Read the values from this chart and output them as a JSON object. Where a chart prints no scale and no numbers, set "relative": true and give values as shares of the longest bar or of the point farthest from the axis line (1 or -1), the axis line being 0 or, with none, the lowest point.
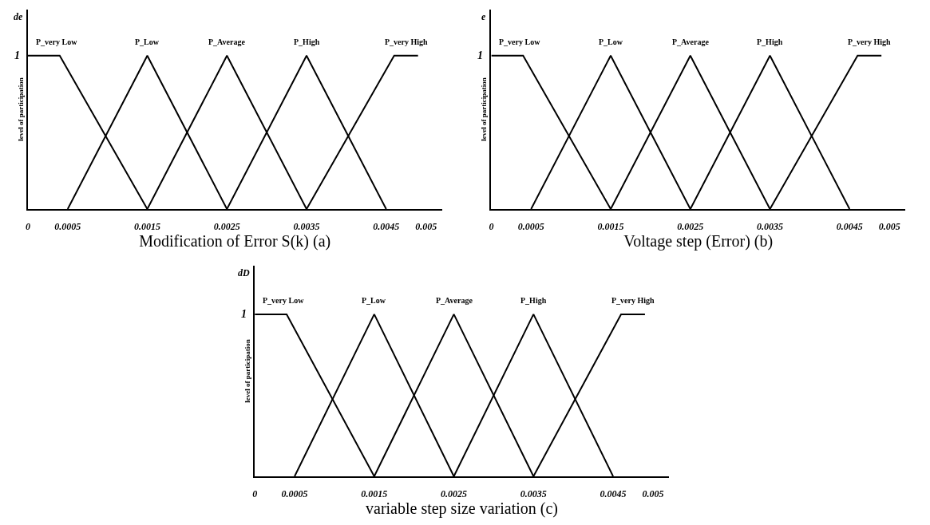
{
  "chart_data": [
    {
      "type": "line",
      "xlabel": "Modification of Error S(k) (a)",
      "ylabel": "level of participation",
      "annotations": [
        "de",
        "1"
      ],
      "relative": true,
      "xlim": [
        0,
        0.0052
      ],
      "xticks": [
        0,
        0.0005,
        0.0015,
        0.0025,
        0.0035,
        0.0045,
        0.005
      ],
      "grid": false,
      "legend": false,
      "marker": "none",
      "line_style": "solid",
      "series": [
        {
          "name": "P_very Low",
          "color": "#000000",
          "x": [
            0,
            0.0004,
            0.0015
          ],
          "values": [
            1,
            1,
            0
          ]
        },
        {
          "name": "P_Low",
          "color": "#000000",
          "x": [
            0.0005,
            0.0015,
            0.0025
          ],
          "values": [
            0,
            1,
            0
          ]
        },
        {
          "name": "P_Average",
          "color": "#000000",
          "x": [
            0.0015,
            0.0025,
            0.0035
          ],
          "values": [
            0,
            1,
            0
          ]
        },
        {
          "name": "P_High",
          "color": "#000000",
          "x": [
            0.0025,
            0.0035,
            0.0045
          ],
          "values": [
            0,
            1,
            0
          ]
        },
        {
          "name": "P_very High",
          "color": "#000000",
          "x": [
            0.0035,
            0.0046,
            0.0049
          ],
          "values": [
            0,
            1,
            1
          ]
        }
      ]
    },
    {
      "type": "line",
      "xlabel": "Voltage step (Error) (b)",
      "ylabel": "level of participation",
      "annotations": [
        "e",
        "1"
      ],
      "relative": true,
      "xlim": [
        0,
        0.0052
      ],
      "xticks": [
        0,
        0.0005,
        0.0015,
        0.0025,
        0.0035,
        0.0045,
        0.005
      ],
      "grid": false,
      "legend": false,
      "marker": "none",
      "line_style": "solid",
      "series": [
        {
          "name": "P_very Low",
          "color": "#000000",
          "x": [
            0,
            0.0004,
            0.0015
          ],
          "values": [
            1,
            1,
            0
          ]
        },
        {
          "name": "P_Low",
          "color": "#000000",
          "x": [
            0.0005,
            0.0015,
            0.0025
          ],
          "values": [
            0,
            1,
            0
          ]
        },
        {
          "name": "P_Average",
          "color": "#000000",
          "x": [
            0.0015,
            0.0025,
            0.0035
          ],
          "values": [
            0,
            1,
            0
          ]
        },
        {
          "name": "P_High",
          "color": "#000000",
          "x": [
            0.0025,
            0.0035,
            0.0045
          ],
          "values": [
            0,
            1,
            0
          ]
        },
        {
          "name": "P_very High",
          "color": "#000000",
          "x": [
            0.0035,
            0.0046,
            0.0049
          ],
          "values": [
            0,
            1,
            1
          ]
        }
      ]
    },
    {
      "type": "line",
      "xlabel": "variable step size variation (c)",
      "ylabel": "level of participation",
      "annotations": [
        "dD",
        "1"
      ],
      "relative": true,
      "xlim": [
        0,
        0.0052
      ],
      "xticks": [
        0,
        0.0005,
        0.0015,
        0.0025,
        0.0035,
        0.0045,
        0.005
      ],
      "grid": false,
      "legend": false,
      "marker": "none",
      "line_style": "solid",
      "series": [
        {
          "name": "P_very Low",
          "color": "#000000",
          "x": [
            0,
            0.0004,
            0.0015
          ],
          "values": [
            1,
            1,
            0
          ]
        },
        {
          "name": "P_Low",
          "color": "#000000",
          "x": [
            0.0005,
            0.0015,
            0.0025
          ],
          "values": [
            0,
            1,
            0
          ]
        },
        {
          "name": "P_Average",
          "color": "#000000",
          "x": [
            0.0015,
            0.0025,
            0.0035
          ],
          "values": [
            0,
            1,
            0
          ]
        },
        {
          "name": "P_High",
          "color": "#000000",
          "x": [
            0.0025,
            0.0035,
            0.0045
          ],
          "values": [
            0,
            1,
            0
          ]
        },
        {
          "name": "P_very High",
          "color": "#000000",
          "x": [
            0.0035,
            0.0046,
            0.0049
          ],
          "values": [
            0,
            1,
            1
          ]
        }
      ]
    }
  ]
}
